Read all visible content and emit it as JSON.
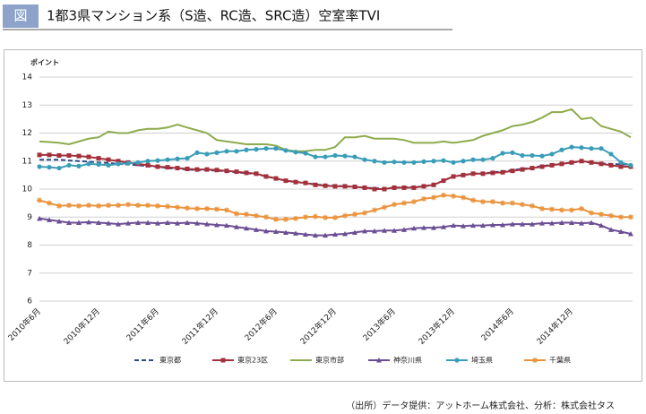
{
  "chart_data": {
    "type": "line",
    "figure_label": "図",
    "title": "1都3県マンション系（S造、RC造、SRC造）空室率TVI",
    "y_label": "ポイント",
    "source": "（出所）データ提供：アットホーム株式会社、分析：株式会社タス",
    "categories": [
      "2010年6月",
      null,
      null,
      null,
      null,
      null,
      "2010年12月",
      null,
      null,
      null,
      null,
      null,
      "2011年6月",
      null,
      null,
      null,
      null,
      null,
      "2011年12月",
      null,
      null,
      null,
      null,
      null,
      "2012年6月",
      null,
      null,
      null,
      null,
      null,
      "2012年12月",
      null,
      null,
      null,
      null,
      null,
      "2013年6月",
      null,
      null,
      null,
      null,
      null,
      "2013年12月",
      null,
      null,
      null,
      null,
      null,
      "2014年6月",
      null,
      null,
      null,
      null,
      null,
      "2014年12月",
      null,
      null,
      null,
      null,
      null,
      null
    ],
    "ylim": [
      6,
      14
    ],
    "yticks": [
      6,
      7,
      8,
      9,
      10,
      11,
      12,
      13,
      14
    ],
    "grid": true,
    "series": [
      {
        "name": "東京都",
        "color": "#2b4a8a",
        "style": "dashed",
        "marker": "none",
        "values": [
          11.05,
          11.05,
          11.05,
          11.02,
          11.0,
          10.98,
          10.95,
          10.93,
          10.9,
          10.88,
          10.85,
          10.82,
          10.8,
          10.75,
          10.72,
          10.7,
          10.68,
          10.68,
          10.66,
          10.63,
          10.6,
          10.57,
          10.53,
          10.45,
          10.38,
          10.3,
          10.26,
          10.22,
          10.17,
          10.13,
          10.12,
          10.1,
          10.08,
          10.05,
          10.03,
          10.02,
          10.05,
          10.06,
          10.07,
          10.1,
          10.15,
          10.3,
          10.45,
          10.5,
          10.55,
          10.56,
          10.6,
          10.63,
          10.68,
          10.72,
          10.77,
          10.82,
          10.87,
          10.9,
          10.95,
          10.98,
          10.95,
          10.92,
          10.9,
          10.88,
          10.88
        ]
      },
      {
        "name": "東京23区",
        "color": "#a3313c",
        "style": "solid",
        "marker": "square",
        "values": [
          11.22,
          11.22,
          11.2,
          11.2,
          11.18,
          11.15,
          11.1,
          11.05,
          11.0,
          10.95,
          10.9,
          10.85,
          10.8,
          10.78,
          10.75,
          10.72,
          10.7,
          10.7,
          10.68,
          10.65,
          10.62,
          10.58,
          10.55,
          10.45,
          10.38,
          10.3,
          10.25,
          10.22,
          10.15,
          10.12,
          10.1,
          10.1,
          10.08,
          10.05,
          10.0,
          10.0,
          10.05,
          10.05,
          10.05,
          10.1,
          10.15,
          10.3,
          10.45,
          10.5,
          10.55,
          10.55,
          10.58,
          10.6,
          10.65,
          10.7,
          10.75,
          10.8,
          10.85,
          10.9,
          10.95,
          11.0,
          10.95,
          10.9,
          10.85,
          10.8,
          10.8
        ]
      },
      {
        "name": "東京市部",
        "color": "#8eab4d",
        "style": "solid",
        "marker": "none",
        "values": [
          11.7,
          11.68,
          11.65,
          11.6,
          11.7,
          11.8,
          11.85,
          12.05,
          12.0,
          12.0,
          12.1,
          12.15,
          12.15,
          12.2,
          12.3,
          12.2,
          12.1,
          12.0,
          11.75,
          11.7,
          11.65,
          11.6,
          11.6,
          11.6,
          11.55,
          11.4,
          11.35,
          11.35,
          11.4,
          11.4,
          11.5,
          11.85,
          11.85,
          11.9,
          11.8,
          11.8,
          11.8,
          11.75,
          11.65,
          11.65,
          11.65,
          11.7,
          11.65,
          11.7,
          11.75,
          11.9,
          12.0,
          12.1,
          12.25,
          12.3,
          12.4,
          12.55,
          12.75,
          12.75,
          12.85,
          12.5,
          12.55,
          12.25,
          12.15,
          12.05,
          11.85
        ]
      },
      {
        "name": "神奈川県",
        "color": "#6b4e94",
        "style": "solid",
        "marker": "triangle",
        "values": [
          8.95,
          8.9,
          8.85,
          8.8,
          8.8,
          8.82,
          8.8,
          8.78,
          8.75,
          8.78,
          8.8,
          8.8,
          8.78,
          8.8,
          8.78,
          8.8,
          8.78,
          8.75,
          8.72,
          8.7,
          8.65,
          8.6,
          8.55,
          8.5,
          8.48,
          8.45,
          8.42,
          8.38,
          8.35,
          8.35,
          8.38,
          8.4,
          8.45,
          8.5,
          8.5,
          8.52,
          8.52,
          8.55,
          8.6,
          8.62,
          8.62,
          8.65,
          8.7,
          8.68,
          8.7,
          8.7,
          8.72,
          8.72,
          8.75,
          8.75,
          8.75,
          8.78,
          8.78,
          8.8,
          8.8,
          8.78,
          8.8,
          8.7,
          8.55,
          8.48,
          8.4
        ]
      },
      {
        "name": "埼玉県",
        "color": "#3a9db8",
        "style": "solid",
        "marker": "circle",
        "values": [
          10.8,
          10.78,
          10.75,
          10.85,
          10.82,
          10.9,
          10.88,
          10.85,
          10.9,
          10.92,
          10.95,
          11.0,
          11.02,
          11.05,
          11.08,
          11.1,
          11.3,
          11.25,
          11.3,
          11.35,
          11.35,
          11.4,
          11.42,
          11.45,
          11.45,
          11.38,
          11.32,
          11.28,
          11.15,
          11.15,
          11.2,
          11.18,
          11.15,
          11.05,
          11.0,
          10.95,
          10.97,
          10.95,
          10.95,
          10.98,
          11.0,
          11.02,
          10.95,
          11.0,
          11.05,
          11.05,
          11.1,
          11.28,
          11.3,
          11.2,
          11.2,
          11.18,
          11.25,
          11.4,
          11.5,
          11.48,
          11.45,
          11.45,
          11.25,
          10.95,
          10.85
        ]
      },
      {
        "name": "千葉県",
        "color": "#ea933c",
        "style": "solid",
        "marker": "star",
        "values": [
          9.6,
          9.5,
          9.4,
          9.42,
          9.4,
          9.42,
          9.4,
          9.42,
          9.42,
          9.45,
          9.42,
          9.42,
          9.4,
          9.38,
          9.35,
          9.32,
          9.3,
          9.3,
          9.28,
          9.25,
          9.12,
          9.1,
          9.05,
          9.0,
          8.92,
          8.92,
          8.95,
          9.0,
          9.02,
          8.98,
          8.98,
          9.05,
          9.1,
          9.15,
          9.25,
          9.35,
          9.45,
          9.5,
          9.55,
          9.65,
          9.7,
          9.78,
          9.75,
          9.7,
          9.6,
          9.55,
          9.55,
          9.5,
          9.5,
          9.45,
          9.4,
          9.3,
          9.28,
          9.25,
          9.25,
          9.3,
          9.15,
          9.1,
          9.05,
          9.0,
          9.0
        ]
      }
    ]
  }
}
